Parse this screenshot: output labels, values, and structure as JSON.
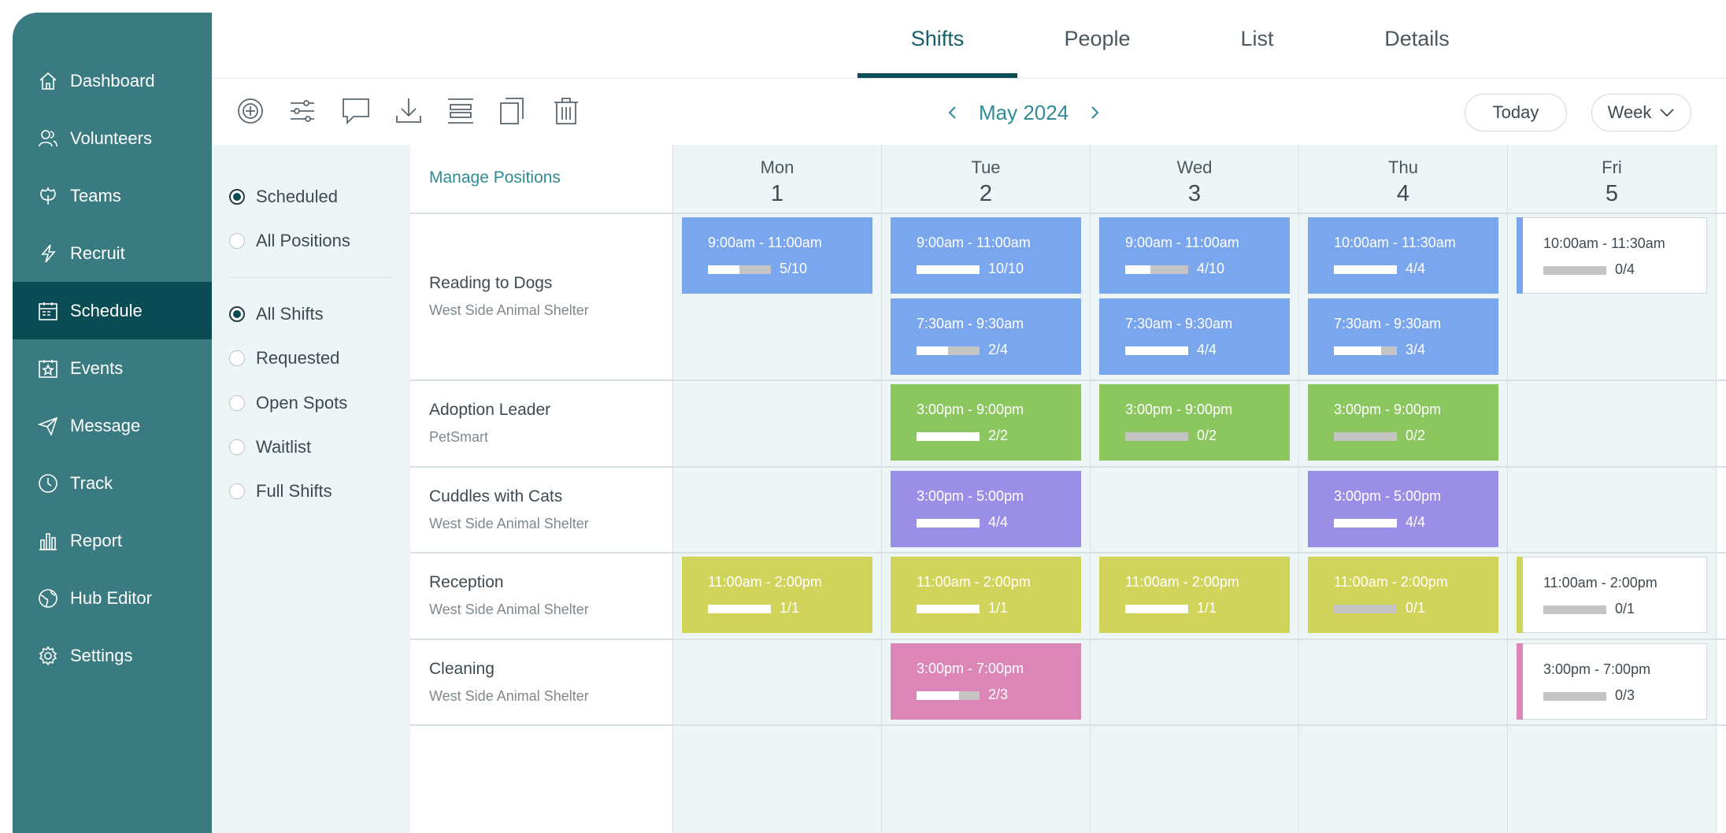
{
  "sidebar": {
    "items": [
      {
        "label": "Dashboard",
        "icon": "home-icon"
      },
      {
        "label": "Volunteers",
        "icon": "people-icon"
      },
      {
        "label": "Teams",
        "icon": "leaf-icon"
      },
      {
        "label": "Recruit",
        "icon": "lightning-icon"
      },
      {
        "label": "Schedule",
        "icon": "calendar-icon",
        "active": true
      },
      {
        "label": "Events",
        "icon": "star-calendar-icon"
      },
      {
        "label": "Message",
        "icon": "paper-plane-icon"
      },
      {
        "label": "Track",
        "icon": "clock-icon"
      },
      {
        "label": "Report",
        "icon": "chart-icon"
      },
      {
        "label": "Hub Editor",
        "icon": "globe-icon"
      },
      {
        "label": "Settings",
        "icon": "gear-icon"
      }
    ]
  },
  "tabs": [
    "Shifts",
    "People",
    "List",
    "Details"
  ],
  "toolbar": {
    "icons": [
      "add-shift-icon",
      "filters-icon",
      "comment-icon",
      "download-icon",
      "align-icon",
      "copy-icon",
      "trash-icon"
    ],
    "month": "May 2024",
    "today_label": "Today",
    "view_label": "Week"
  },
  "filters": {
    "group1": [
      {
        "label": "Scheduled",
        "selected": true
      },
      {
        "label": "All Positions",
        "selected": false
      }
    ],
    "group2": [
      {
        "label": "All Shifts",
        "selected": true
      },
      {
        "label": "Requested",
        "selected": false
      },
      {
        "label": "Open Spots",
        "selected": false
      },
      {
        "label": "Waitlist",
        "selected": false
      },
      {
        "label": "Full Shifts",
        "selected": false
      }
    ]
  },
  "grid": {
    "manage_label": "Manage Positions",
    "days": [
      {
        "name": "Mon",
        "num": "1"
      },
      {
        "name": "Tue",
        "num": "2"
      },
      {
        "name": "Wed",
        "num": "3"
      },
      {
        "name": "Thu",
        "num": "4"
      },
      {
        "name": "Fri",
        "num": "5"
      }
    ],
    "positions": [
      {
        "name": "Reading to Dogs",
        "location": "West Side Animal Shelter"
      },
      {
        "name": "Adoption Leader",
        "location": "PetSmart"
      },
      {
        "name": "Cuddles with Cats",
        "location": "West Side Animal Shelter"
      },
      {
        "name": "Reception",
        "location": "West Side Animal Shelter"
      },
      {
        "name": "Cleaning",
        "location": "West Side Animal Shelter"
      }
    ],
    "colors": {
      "blue": "#7aa6ee",
      "green": "#8bc75e",
      "purple": "#9a8ee6",
      "yellow": "#d1d45a",
      "pink": "#db86b6"
    },
    "shifts": [
      {
        "row": 0,
        "slot": 0,
        "day": 0,
        "time": "9:00am - 11:00am",
        "count": "5/10",
        "filled": 0.5,
        "color": "blue",
        "style": "solid"
      },
      {
        "row": 0,
        "slot": 0,
        "day": 1,
        "time": "9:00am - 11:00am",
        "count": "10/10",
        "filled": 1.0,
        "color": "blue",
        "style": "solid"
      },
      {
        "row": 0,
        "slot": 1,
        "day": 1,
        "time": "7:30am - 9:30am",
        "count": "2/4",
        "filled": 0.5,
        "color": "blue",
        "style": "solid"
      },
      {
        "row": 0,
        "slot": 0,
        "day": 2,
        "time": "9:00am - 11:00am",
        "count": "4/10",
        "filled": 0.4,
        "color": "blue",
        "style": "solid"
      },
      {
        "row": 0,
        "slot": 1,
        "day": 2,
        "time": "7:30am - 9:30am",
        "count": "4/4",
        "filled": 1.0,
        "color": "blue",
        "style": "solid"
      },
      {
        "row": 0,
        "slot": 0,
        "day": 3,
        "time": "10:00am - 11:30am",
        "count": "4/4",
        "filled": 1.0,
        "color": "blue",
        "style": "solid"
      },
      {
        "row": 0,
        "slot": 1,
        "day": 3,
        "time": "7:30am - 9:30am",
        "count": "3/4",
        "filled": 0.75,
        "color": "blue",
        "style": "solid"
      },
      {
        "row": 0,
        "slot": 0,
        "day": 4,
        "time": "10:00am - 11:30am",
        "count": "0/4",
        "filled": 0,
        "color": "blue",
        "style": "outline"
      },
      {
        "row": 1,
        "slot": 0,
        "day": 1,
        "time": "3:00pm - 9:00pm",
        "count": "2/2",
        "filled": 1.0,
        "color": "green",
        "style": "solid"
      },
      {
        "row": 1,
        "slot": 0,
        "day": 2,
        "time": "3:00pm - 9:00pm",
        "count": "0/2",
        "filled": 0,
        "color": "green",
        "style": "solid"
      },
      {
        "row": 1,
        "slot": 0,
        "day": 3,
        "time": "3:00pm - 9:00pm",
        "count": "0/2",
        "filled": 0,
        "color": "green",
        "style": "solid"
      },
      {
        "row": 2,
        "slot": 0,
        "day": 1,
        "time": "3:00pm - 5:00pm",
        "count": "4/4",
        "filled": 1.0,
        "color": "purple",
        "style": "solid"
      },
      {
        "row": 2,
        "slot": 0,
        "day": 3,
        "time": "3:00pm - 5:00pm",
        "count": "4/4",
        "filled": 1.0,
        "color": "purple",
        "style": "solid"
      },
      {
        "row": 3,
        "slot": 0,
        "day": 0,
        "time": "11:00am - 2:00pm",
        "count": "1/1",
        "filled": 1.0,
        "color": "yellow",
        "style": "solid"
      },
      {
        "row": 3,
        "slot": 0,
        "day": 1,
        "time": "11:00am - 2:00pm",
        "count": "1/1",
        "filled": 1.0,
        "color": "yellow",
        "style": "solid"
      },
      {
        "row": 3,
        "slot": 0,
        "day": 2,
        "time": "11:00am - 2:00pm",
        "count": "1/1",
        "filled": 1.0,
        "color": "yellow",
        "style": "solid"
      },
      {
        "row": 3,
        "slot": 0,
        "day": 3,
        "time": "11:00am - 2:00pm",
        "count": "0/1",
        "filled": 0,
        "color": "yellow",
        "style": "solid"
      },
      {
        "row": 3,
        "slot": 0,
        "day": 4,
        "time": "11:00am - 2:00pm",
        "count": "0/1",
        "filled": 0,
        "color": "yellow",
        "style": "outline"
      },
      {
        "row": 4,
        "slot": 0,
        "day": 1,
        "time": "3:00pm - 7:00pm",
        "count": "2/3",
        "filled": 0.67,
        "color": "pink",
        "style": "solid"
      },
      {
        "row": 4,
        "slot": 0,
        "day": 4,
        "time": "3:00pm - 7:00pm",
        "count": "0/3",
        "filled": 0,
        "color": "pink",
        "style": "outline"
      }
    ]
  }
}
